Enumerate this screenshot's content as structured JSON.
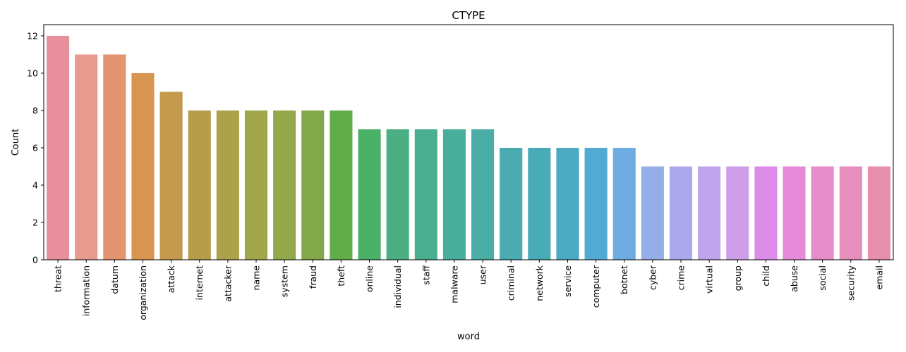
{
  "chart_data": {
    "type": "bar",
    "title": "CTYPE",
    "xlabel": "word",
    "ylabel": "Count",
    "ylim": [
      0,
      12.6
    ],
    "yticks": [
      0,
      2,
      4,
      6,
      8,
      10,
      12
    ],
    "grid": false,
    "categories": [
      "threat",
      "information",
      "datum",
      "organization",
      "attack",
      "internet",
      "attacker",
      "name",
      "system",
      "fraud",
      "theft",
      "online",
      "individual",
      "staff",
      "malware",
      "user",
      "criminal",
      "network",
      "service",
      "computer",
      "botnet",
      "cyber",
      "crime",
      "virtual",
      "group",
      "child",
      "abuse",
      "social",
      "security",
      "email"
    ],
    "values": [
      12,
      11,
      11,
      10,
      9,
      8,
      8,
      8,
      8,
      8,
      8,
      7,
      7,
      7,
      7,
      7,
      6,
      6,
      6,
      6,
      6,
      5,
      5,
      5,
      5,
      5,
      5,
      5,
      5,
      5
    ],
    "colors": [
      "#e8909d",
      "#e79b8f",
      "#e39470",
      "#d8954f",
      "#c49a4d",
      "#b79c4a",
      "#aba24a",
      "#9fa64b",
      "#93a74b",
      "#83a84a",
      "#62ad4a",
      "#4bb169",
      "#4ab083",
      "#4aaf91",
      "#49ae9c",
      "#4aaea6",
      "#4aacb1",
      "#4aabb8",
      "#4ba9c2",
      "#52aad3",
      "#6fabe3",
      "#96aee7",
      "#aba9ec",
      "#bea4ea",
      "#cf9ee9",
      "#dd8be8",
      "#e48ad7",
      "#e68cc9",
      "#e88ebd",
      "#e890ab"
    ]
  }
}
